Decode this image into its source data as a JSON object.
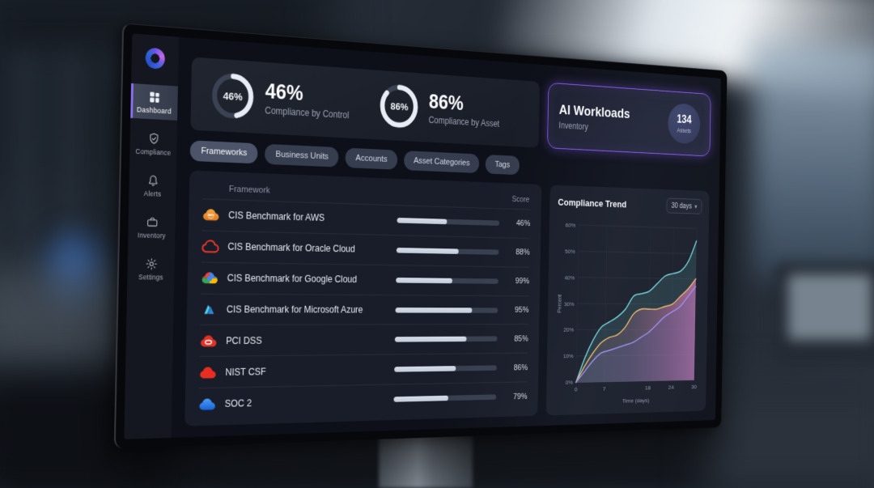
{
  "sidebar": {
    "items": [
      {
        "label": "Dashboard",
        "icon": "grid-icon",
        "active": true
      },
      {
        "label": "Compliance",
        "icon": "shield-check-icon",
        "active": false
      },
      {
        "label": "Alerts",
        "icon": "bell-icon",
        "active": false
      },
      {
        "label": "Inventory",
        "icon": "briefcase-icon",
        "active": false
      },
      {
        "label": "Settings",
        "icon": "gear-icon",
        "active": false
      }
    ]
  },
  "metrics": {
    "gauges": [
      {
        "value": 46,
        "value_label": "46%",
        "title": "46%",
        "subtitle": "Compliance by Control"
      },
      {
        "value": 86,
        "value_label": "86%",
        "title": "86%",
        "subtitle": "Compliance by Asset"
      }
    ]
  },
  "ai_card": {
    "title": "AI Workloads",
    "subtitle": "Inventory",
    "badge_value": "134",
    "badge_label": "Assets",
    "accent_color": "#8b5cf6"
  },
  "filters": [
    {
      "label": "Frameworks",
      "active": true
    },
    {
      "label": "Business Units",
      "active": false
    },
    {
      "label": "Accounts",
      "active": false
    },
    {
      "label": "Asset Categories",
      "active": false
    },
    {
      "label": "Tags",
      "active": false
    }
  ],
  "framework_table": {
    "columns": {
      "framework": "Framework",
      "score": "Score"
    },
    "rows": [
      {
        "name": "CIS Benchmark for AWS",
        "icon": "aws-cloud-icon",
        "score": "46%",
        "bar_percent": 48
      },
      {
        "name": "CIS Benchmark for Oracle Cloud",
        "icon": "oracle-cloud-icon",
        "score": "88%",
        "bar_percent": 60
      },
      {
        "name": "CIS Benchmark for Google Cloud",
        "icon": "google-cloud-icon",
        "score": "99%",
        "bar_percent": 54
      },
      {
        "name": "CIS Benchmark for Microsoft Azure",
        "icon": "azure-icon",
        "score": "95%",
        "bar_percent": 74
      },
      {
        "name": "PCI DSS",
        "icon": "pci-cloud-icon",
        "score": "85%",
        "bar_percent": 69
      },
      {
        "name": "NIST CSF",
        "icon": "nist-cloud-icon",
        "score": "86%",
        "bar_percent": 59
      },
      {
        "name": "SOC 2",
        "icon": "soc2-cloud-icon",
        "score": "79%",
        "bar_percent": 52
      }
    ]
  },
  "trend": {
    "title": "Compliance Trend",
    "range_selector": "30 days",
    "chevron": "▾"
  },
  "chart_data": {
    "type": "area",
    "title": "Compliance Trend",
    "xlabel": "Time (days)",
    "ylabel": "Percent",
    "x_ticks": [
      0,
      7,
      18,
      24,
      30
    ],
    "y_ticks": [
      "0%",
      "10%",
      "20%",
      "30%",
      "40%",
      "50%",
      "60%"
    ],
    "xlim": [
      0,
      30
    ],
    "ylim": [
      0,
      60
    ],
    "grid": true,
    "legend": "none",
    "x": [
      0,
      2,
      4,
      6,
      8,
      10,
      12,
      14,
      16,
      18,
      20,
      22,
      24,
      26,
      28,
      30
    ],
    "series": [
      {
        "name": "series-teal",
        "color": "#6fd0d4",
        "values": [
          0,
          9,
          16,
          21,
          23,
          25,
          28,
          33,
          34,
          35,
          38,
          41,
          42,
          43,
          47,
          55
        ]
      },
      {
        "name": "series-orange",
        "color": "#e9b168",
        "values": [
          0,
          6,
          11,
          15,
          17,
          18,
          21,
          26,
          28,
          28,
          28,
          29,
          30,
          33,
          36,
          40
        ]
      },
      {
        "name": "series-purple",
        "color": "#988bea",
        "values": [
          0,
          4,
          8,
          11,
          12,
          13,
          14,
          15,
          17,
          19,
          22,
          25,
          27,
          29,
          33,
          37
        ]
      }
    ]
  }
}
